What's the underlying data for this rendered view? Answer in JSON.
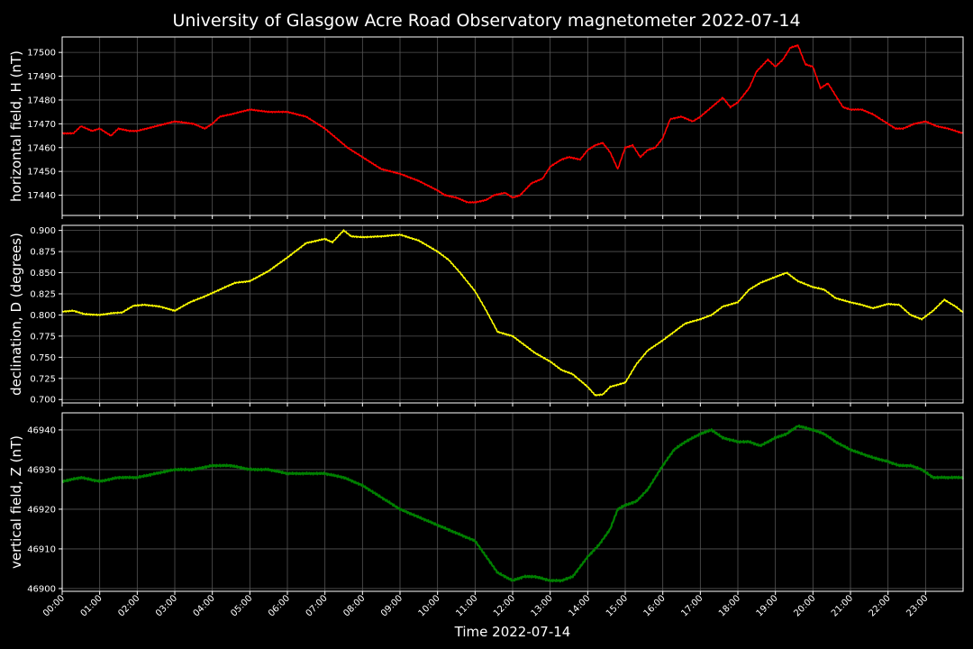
{
  "title": "University of Glasgow Acre Road Observatory magnetometer 2022-07-14",
  "xlabel": "Time 2022-07-14",
  "chart_data": {
    "type": "line",
    "x_unit": "hour of day",
    "xlim": [
      0,
      24
    ],
    "xticks": [
      "00:00",
      "01:00",
      "02:00",
      "03:00",
      "04:00",
      "05:00",
      "06:00",
      "07:00",
      "08:00",
      "09:00",
      "10:00",
      "11:00",
      "12:00",
      "13:00",
      "14:00",
      "15:00",
      "16:00",
      "17:00",
      "18:00",
      "19:00",
      "20:00",
      "21:00",
      "22:00",
      "23:00"
    ],
    "panels": [
      {
        "ylabel": "horizontal field, H (nT)",
        "color": "#ff0000",
        "ylim": [
          17431.5,
          17506.5
        ],
        "yticks": [
          17440,
          17450,
          17460,
          17470,
          17480,
          17490,
          17500
        ],
        "x": [
          0,
          0.3,
          0.5,
          0.8,
          1,
          1.3,
          1.5,
          1.8,
          2,
          2.5,
          3,
          3.5,
          3.8,
          4,
          4.2,
          4.5,
          5,
          5.5,
          6,
          6.5,
          6.8,
          7,
          7.3,
          7.6,
          8,
          8.5,
          9,
          9.5,
          10,
          10.2,
          10.5,
          10.8,
          11,
          11.3,
          11.5,
          11.8,
          12,
          12.2,
          12.5,
          12.8,
          13,
          13.3,
          13.5,
          13.8,
          14,
          14.2,
          14.4,
          14.6,
          14.8,
          15,
          15.2,
          15.4,
          15.6,
          15.8,
          16,
          16.2,
          16.5,
          16.8,
          17,
          17.3,
          17.6,
          17.8,
          18,
          18.3,
          18.5,
          18.8,
          19,
          19.2,
          19.4,
          19.6,
          19.8,
          20,
          20.2,
          20.4,
          20.6,
          20.8,
          21,
          21.3,
          21.6,
          21.9,
          22.2,
          22.4,
          22.7,
          23,
          23.3,
          23.6,
          24
        ],
        "values": [
          17466,
          17466,
          17469,
          17467,
          17468,
          17465,
          17468,
          17467,
          17467,
          17469,
          17471,
          17470,
          17468,
          17470,
          17473,
          17474,
          17476,
          17475,
          17475,
          17473,
          17470,
          17468,
          17464,
          17460,
          17456,
          17451,
          17449,
          17446,
          17442,
          17440,
          17439,
          17437,
          17437,
          17438,
          17440,
          17441,
          17439,
          17440,
          17445,
          17447,
          17452,
          17455,
          17456,
          17455,
          17459,
          17461,
          17462,
          17458,
          17451,
          17460,
          17461,
          17456,
          17459,
          17460,
          17464,
          17472,
          17473,
          17471,
          17473,
          17477,
          17481,
          17477,
          17479,
          17485,
          17492,
          17497,
          17494,
          17497,
          17502,
          17503,
          17495,
          17494,
          17485,
          17487,
          17482,
          17477,
          17476,
          17476,
          17474,
          17471,
          17468,
          17468,
          17470,
          17471,
          17469,
          17468,
          17466
        ]
      },
      {
        "ylabel": "declination, D (degrees)",
        "color": "#ffff00",
        "ylim": [
          0.696,
          0.906
        ],
        "yticks": [
          0.7,
          0.725,
          0.75,
          0.775,
          0.8,
          0.825,
          0.85,
          0.875,
          0.9
        ],
        "x": [
          0,
          0.3,
          0.6,
          1,
          1.3,
          1.6,
          1.9,
          2.2,
          2.6,
          3,
          3.4,
          3.8,
          4.2,
          4.6,
          5,
          5.5,
          6,
          6.5,
          7,
          7.2,
          7.5,
          7.7,
          8,
          8.5,
          9,
          9.5,
          10,
          10.3,
          10.6,
          11,
          11.3,
          11.6,
          12,
          12.3,
          12.6,
          13,
          13.3,
          13.6,
          14,
          14.2,
          14.4,
          14.6,
          15,
          15.3,
          15.6,
          16,
          16.3,
          16.6,
          17,
          17.3,
          17.6,
          18,
          18.3,
          18.6,
          19,
          19.3,
          19.6,
          20,
          20.3,
          20.6,
          21,
          21.3,
          21.6,
          22,
          22.3,
          22.6,
          22.9,
          23.2,
          23.5,
          23.8,
          24
        ],
        "values": [
          0.804,
          0.805,
          0.801,
          0.8,
          0.802,
          0.803,
          0.811,
          0.812,
          0.81,
          0.805,
          0.815,
          0.822,
          0.83,
          0.838,
          0.84,
          0.852,
          0.868,
          0.885,
          0.89,
          0.886,
          0.9,
          0.893,
          0.892,
          0.893,
          0.895,
          0.888,
          0.875,
          0.865,
          0.85,
          0.828,
          0.805,
          0.78,
          0.775,
          0.765,
          0.755,
          0.745,
          0.735,
          0.73,
          0.715,
          0.705,
          0.706,
          0.715,
          0.72,
          0.742,
          0.758,
          0.77,
          0.78,
          0.79,
          0.795,
          0.8,
          0.81,
          0.815,
          0.83,
          0.838,
          0.845,
          0.85,
          0.84,
          0.833,
          0.83,
          0.82,
          0.815,
          0.812,
          0.808,
          0.813,
          0.812,
          0.8,
          0.795,
          0.805,
          0.818,
          0.81,
          0.803
        ]
      },
      {
        "ylabel": "vertical field, Z (nT)",
        "color": "#008000",
        "ylim": [
          46899.3,
          46944.3
        ],
        "yticks": [
          46900,
          46910,
          46920,
          46930,
          46940
        ],
        "x": [
          0,
          0.5,
          1,
          1.5,
          2,
          2.5,
          3,
          3.5,
          4,
          4.5,
          5,
          5.5,
          6,
          6.5,
          7,
          7.5,
          8,
          8.5,
          9,
          9.5,
          10,
          10.5,
          11,
          11.3,
          11.6,
          12,
          12.3,
          12.6,
          13,
          13.3,
          13.6,
          14,
          14.3,
          14.6,
          14.8,
          15,
          15.3,
          15.6,
          16,
          16.3,
          16.6,
          17,
          17.3,
          17.6,
          18,
          18.3,
          18.6,
          19,
          19.3,
          19.6,
          20,
          20.3,
          20.6,
          21,
          21.3,
          21.6,
          22,
          22.3,
          22.6,
          22.9,
          23.2,
          23.5,
          24
        ],
        "values": [
          46927,
          46928,
          46927,
          46928,
          46928,
          46929,
          46930,
          46930,
          46931,
          46931,
          46930,
          46930,
          46929,
          46929,
          46929,
          46928,
          46926,
          46923,
          46920,
          46918,
          46916,
          46914,
          46912,
          46908,
          46904,
          46902,
          46903,
          46903,
          46902,
          46902,
          46903,
          46908,
          46911,
          46915,
          46920,
          46921,
          46922,
          46925,
          46931,
          46935,
          46937,
          46939,
          46940,
          46938,
          46937,
          46937,
          46936,
          46938,
          46939,
          46941,
          46940,
          46939,
          46937,
          46935,
          46934,
          46933,
          46932,
          46931,
          46931,
          46930,
          46928,
          46928,
          46928
        ]
      }
    ]
  }
}
